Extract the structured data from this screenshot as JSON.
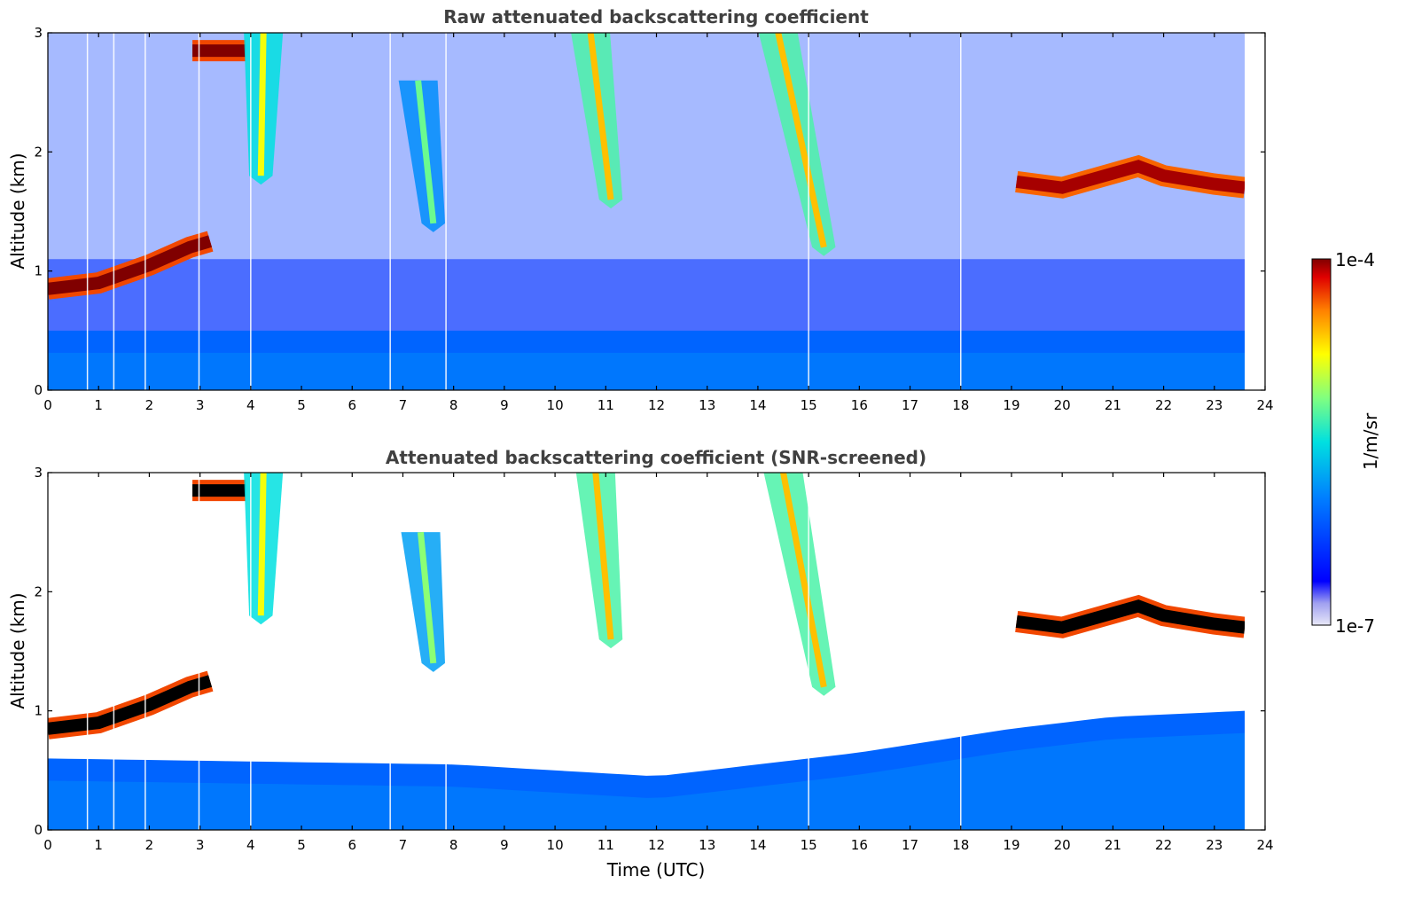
{
  "chart_data": [
    {
      "type": "heatmap",
      "title": "Raw attenuated backscattering coefficient",
      "xlabel": "",
      "ylabel": "Altitude (km)",
      "xlim": [
        0,
        24
      ],
      "ylim": [
        0,
        3
      ],
      "x_ticks": [
        "0",
        "1",
        "2",
        "3",
        "4",
        "5",
        "6",
        "7",
        "8",
        "9",
        "10",
        "11",
        "12",
        "13",
        "14",
        "15",
        "16",
        "17",
        "18",
        "19",
        "20",
        "21",
        "22",
        "23",
        "24"
      ],
      "y_ticks": [
        "0",
        "1",
        "2",
        "3"
      ],
      "data_end_hour": 23.6,
      "colormap": "jet",
      "color_scale": "log",
      "color_range": [
        1e-07,
        0.0001
      ],
      "screened": false,
      "features": [
        {
          "kind": "boundary_layer_top",
          "t": [
            0,
            1,
            2,
            2.8,
            3.2
          ],
          "z": [
            0.85,
            0.9,
            1.05,
            1.2,
            1.25
          ],
          "level": 1.0
        },
        {
          "kind": "cloud_top",
          "t": [
            2.85,
            3.9
          ],
          "z": [
            2.85,
            2.85
          ],
          "level": 1.0
        },
        {
          "kind": "cloud_layer",
          "t": [
            19.1,
            20,
            21,
            21.5,
            22,
            23,
            23.6
          ],
          "z": [
            1.75,
            1.7,
            1.82,
            1.88,
            1.8,
            1.73,
            1.7
          ],
          "level": 0.98
        },
        {
          "kind": "virga",
          "t_top": 4.25,
          "z_top": 3.0,
          "t_bottom": 4.2,
          "z_bottom": 1.8,
          "level": 0.65
        },
        {
          "kind": "virga",
          "t_top": 10.7,
          "z_top": 3.0,
          "t_bottom": 11.1,
          "z_bottom": 1.6,
          "level": 0.72
        },
        {
          "kind": "virga",
          "t_top": 14.4,
          "z_top": 3.0,
          "t_bottom": 15.3,
          "z_bottom": 1.2,
          "level": 0.72
        },
        {
          "kind": "virga",
          "t_top": 7.3,
          "z_top": 2.6,
          "t_bottom": 7.6,
          "z_bottom": 1.4,
          "level": 0.52
        },
        {
          "kind": "aerosol_layer",
          "t": [
            0,
            24
          ],
          "z_top": 0.5,
          "level": 0.3
        }
      ],
      "missing_profiles_hours": [
        0.78,
        1.3,
        1.92,
        2.98,
        4.0,
        6.75,
        7.85,
        15.0,
        18.0
      ]
    },
    {
      "type": "heatmap",
      "title": "Attenuated backscattering coefficient (SNR-screened)",
      "xlabel": "Time (UTC)",
      "ylabel": "Altitude (km)",
      "xlim": [
        0,
        24
      ],
      "ylim": [
        0,
        3
      ],
      "x_ticks": [
        "0",
        "1",
        "2",
        "3",
        "4",
        "5",
        "6",
        "7",
        "8",
        "9",
        "10",
        "11",
        "12",
        "13",
        "14",
        "15",
        "16",
        "17",
        "18",
        "19",
        "20",
        "21",
        "22",
        "23",
        "24"
      ],
      "y_ticks": [
        "0",
        "1",
        "2",
        "3"
      ],
      "data_end_hour": 23.6,
      "colormap": "jet",
      "color_scale": "log",
      "color_range": [
        1e-07,
        0.0001
      ],
      "screened": true,
      "saturation_color": "#000000",
      "features": [
        {
          "kind": "boundary_layer_top",
          "t": [
            0,
            1,
            2,
            2.8,
            3.2
          ],
          "z": [
            0.85,
            0.9,
            1.05,
            1.2,
            1.25
          ],
          "level": 1.0
        },
        {
          "kind": "cloud_top",
          "t": [
            2.85,
            3.9
          ],
          "z": [
            2.85,
            2.85
          ],
          "level": 1.0
        },
        {
          "kind": "cloud_layer",
          "t": [
            19.1,
            20,
            21,
            21.5,
            22,
            23,
            23.6
          ],
          "z": [
            1.75,
            1.7,
            1.82,
            1.88,
            1.8,
            1.73,
            1.7
          ],
          "level": 1.0
        },
        {
          "kind": "virga",
          "t_top": 4.25,
          "z_top": 3.0,
          "t_bottom": 4.2,
          "z_bottom": 1.8,
          "level": 0.65
        },
        {
          "kind": "virga",
          "t_top": 10.8,
          "z_top": 3.0,
          "t_bottom": 11.1,
          "z_bottom": 1.6,
          "level": 0.72
        },
        {
          "kind": "virga",
          "t_top": 14.5,
          "z_top": 3.0,
          "t_bottom": 15.3,
          "z_bottom": 1.2,
          "level": 0.72
        },
        {
          "kind": "virga",
          "t_top": 7.35,
          "z_top": 2.5,
          "t_bottom": 7.6,
          "z_bottom": 1.4,
          "level": 0.55
        },
        {
          "kind": "aerosol_layer",
          "t": [
            0,
            8,
            12,
            16,
            19,
            21,
            23.6
          ],
          "z_top": [
            0.6,
            0.55,
            0.45,
            0.65,
            0.85,
            0.95,
            1.0
          ],
          "level": 0.3
        }
      ],
      "missing_profiles_hours": [
        0.78,
        1.3,
        1.92,
        2.98,
        4.0,
        6.75,
        7.85,
        15.0,
        18.0
      ]
    }
  ],
  "colorbar": {
    "label": "1/m/sr",
    "max_label": "1e-4",
    "min_label": "1e-7",
    "colormap": "jet"
  }
}
